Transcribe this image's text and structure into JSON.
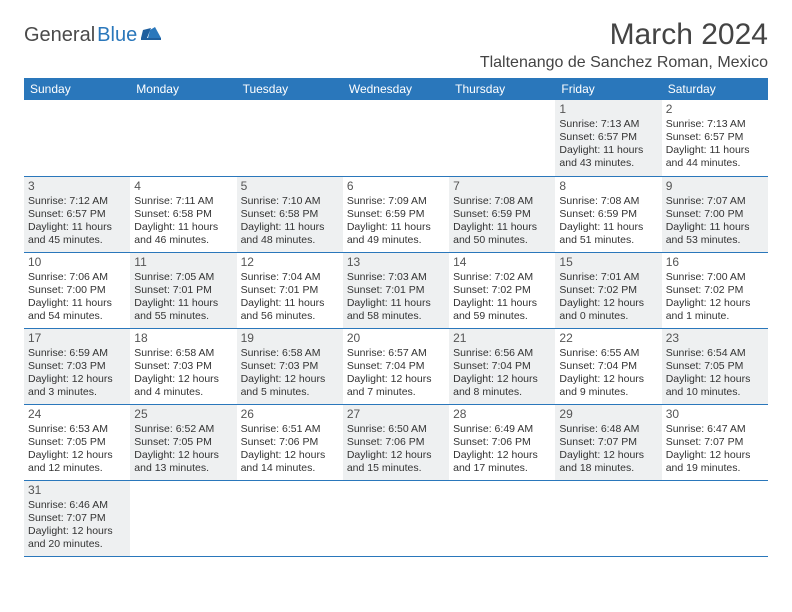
{
  "logo": {
    "text_dark": "General",
    "text_blue": "Blue"
  },
  "title": "March 2024",
  "location": "Tlaltenango de Sanchez Roman, Mexico",
  "colors": {
    "header_bg": "#2a77bb",
    "header_text": "#ffffff",
    "border": "#2a77bb",
    "shaded_bg": "#eef0f1",
    "text": "#333333",
    "logo_dark": "#4a4a4a",
    "logo_blue": "#2a77bb"
  },
  "weekdays": [
    "Sunday",
    "Monday",
    "Tuesday",
    "Wednesday",
    "Thursday",
    "Friday",
    "Saturday"
  ],
  "weeks": [
    [
      null,
      null,
      null,
      null,
      null,
      {
        "n": "1",
        "sunrise": "Sunrise: 7:13 AM",
        "sunset": "Sunset: 6:57 PM",
        "day1": "Daylight: 11 hours",
        "day2": "and 43 minutes.",
        "shaded": true
      },
      {
        "n": "2",
        "sunrise": "Sunrise: 7:13 AM",
        "sunset": "Sunset: 6:57 PM",
        "day1": "Daylight: 11 hours",
        "day2": "and 44 minutes.",
        "shaded": false
      }
    ],
    [
      {
        "n": "3",
        "sunrise": "Sunrise: 7:12 AM",
        "sunset": "Sunset: 6:57 PM",
        "day1": "Daylight: 11 hours",
        "day2": "and 45 minutes.",
        "shaded": true
      },
      {
        "n": "4",
        "sunrise": "Sunrise: 7:11 AM",
        "sunset": "Sunset: 6:58 PM",
        "day1": "Daylight: 11 hours",
        "day2": "and 46 minutes.",
        "shaded": false
      },
      {
        "n": "5",
        "sunrise": "Sunrise: 7:10 AM",
        "sunset": "Sunset: 6:58 PM",
        "day1": "Daylight: 11 hours",
        "day2": "and 48 minutes.",
        "shaded": true
      },
      {
        "n": "6",
        "sunrise": "Sunrise: 7:09 AM",
        "sunset": "Sunset: 6:59 PM",
        "day1": "Daylight: 11 hours",
        "day2": "and 49 minutes.",
        "shaded": false
      },
      {
        "n": "7",
        "sunrise": "Sunrise: 7:08 AM",
        "sunset": "Sunset: 6:59 PM",
        "day1": "Daylight: 11 hours",
        "day2": "and 50 minutes.",
        "shaded": true
      },
      {
        "n": "8",
        "sunrise": "Sunrise: 7:08 AM",
        "sunset": "Sunset: 6:59 PM",
        "day1": "Daylight: 11 hours",
        "day2": "and 51 minutes.",
        "shaded": false
      },
      {
        "n": "9",
        "sunrise": "Sunrise: 7:07 AM",
        "sunset": "Sunset: 7:00 PM",
        "day1": "Daylight: 11 hours",
        "day2": "and 53 minutes.",
        "shaded": true
      }
    ],
    [
      {
        "n": "10",
        "sunrise": "Sunrise: 7:06 AM",
        "sunset": "Sunset: 7:00 PM",
        "day1": "Daylight: 11 hours",
        "day2": "and 54 minutes.",
        "shaded": false
      },
      {
        "n": "11",
        "sunrise": "Sunrise: 7:05 AM",
        "sunset": "Sunset: 7:01 PM",
        "day1": "Daylight: 11 hours",
        "day2": "and 55 minutes.",
        "shaded": true
      },
      {
        "n": "12",
        "sunrise": "Sunrise: 7:04 AM",
        "sunset": "Sunset: 7:01 PM",
        "day1": "Daylight: 11 hours",
        "day2": "and 56 minutes.",
        "shaded": false
      },
      {
        "n": "13",
        "sunrise": "Sunrise: 7:03 AM",
        "sunset": "Sunset: 7:01 PM",
        "day1": "Daylight: 11 hours",
        "day2": "and 58 minutes.",
        "shaded": true
      },
      {
        "n": "14",
        "sunrise": "Sunrise: 7:02 AM",
        "sunset": "Sunset: 7:02 PM",
        "day1": "Daylight: 11 hours",
        "day2": "and 59 minutes.",
        "shaded": false
      },
      {
        "n": "15",
        "sunrise": "Sunrise: 7:01 AM",
        "sunset": "Sunset: 7:02 PM",
        "day1": "Daylight: 12 hours",
        "day2": "and 0 minutes.",
        "shaded": true
      },
      {
        "n": "16",
        "sunrise": "Sunrise: 7:00 AM",
        "sunset": "Sunset: 7:02 PM",
        "day1": "Daylight: 12 hours",
        "day2": "and 1 minute.",
        "shaded": false
      }
    ],
    [
      {
        "n": "17",
        "sunrise": "Sunrise: 6:59 AM",
        "sunset": "Sunset: 7:03 PM",
        "day1": "Daylight: 12 hours",
        "day2": "and 3 minutes.",
        "shaded": true
      },
      {
        "n": "18",
        "sunrise": "Sunrise: 6:58 AM",
        "sunset": "Sunset: 7:03 PM",
        "day1": "Daylight: 12 hours",
        "day2": "and 4 minutes.",
        "shaded": false
      },
      {
        "n": "19",
        "sunrise": "Sunrise: 6:58 AM",
        "sunset": "Sunset: 7:03 PM",
        "day1": "Daylight: 12 hours",
        "day2": "and 5 minutes.",
        "shaded": true
      },
      {
        "n": "20",
        "sunrise": "Sunrise: 6:57 AM",
        "sunset": "Sunset: 7:04 PM",
        "day1": "Daylight: 12 hours",
        "day2": "and 7 minutes.",
        "shaded": false
      },
      {
        "n": "21",
        "sunrise": "Sunrise: 6:56 AM",
        "sunset": "Sunset: 7:04 PM",
        "day1": "Daylight: 12 hours",
        "day2": "and 8 minutes.",
        "shaded": true
      },
      {
        "n": "22",
        "sunrise": "Sunrise: 6:55 AM",
        "sunset": "Sunset: 7:04 PM",
        "day1": "Daylight: 12 hours",
        "day2": "and 9 minutes.",
        "shaded": false
      },
      {
        "n": "23",
        "sunrise": "Sunrise: 6:54 AM",
        "sunset": "Sunset: 7:05 PM",
        "day1": "Daylight: 12 hours",
        "day2": "and 10 minutes.",
        "shaded": true
      }
    ],
    [
      {
        "n": "24",
        "sunrise": "Sunrise: 6:53 AM",
        "sunset": "Sunset: 7:05 PM",
        "day1": "Daylight: 12 hours",
        "day2": "and 12 minutes.",
        "shaded": false
      },
      {
        "n": "25",
        "sunrise": "Sunrise: 6:52 AM",
        "sunset": "Sunset: 7:05 PM",
        "day1": "Daylight: 12 hours",
        "day2": "and 13 minutes.",
        "shaded": true
      },
      {
        "n": "26",
        "sunrise": "Sunrise: 6:51 AM",
        "sunset": "Sunset: 7:06 PM",
        "day1": "Daylight: 12 hours",
        "day2": "and 14 minutes.",
        "shaded": false
      },
      {
        "n": "27",
        "sunrise": "Sunrise: 6:50 AM",
        "sunset": "Sunset: 7:06 PM",
        "day1": "Daylight: 12 hours",
        "day2": "and 15 minutes.",
        "shaded": true
      },
      {
        "n": "28",
        "sunrise": "Sunrise: 6:49 AM",
        "sunset": "Sunset: 7:06 PM",
        "day1": "Daylight: 12 hours",
        "day2": "and 17 minutes.",
        "shaded": false
      },
      {
        "n": "29",
        "sunrise": "Sunrise: 6:48 AM",
        "sunset": "Sunset: 7:07 PM",
        "day1": "Daylight: 12 hours",
        "day2": "and 18 minutes.",
        "shaded": true
      },
      {
        "n": "30",
        "sunrise": "Sunrise: 6:47 AM",
        "sunset": "Sunset: 7:07 PM",
        "day1": "Daylight: 12 hours",
        "day2": "and 19 minutes.",
        "shaded": false
      }
    ],
    [
      {
        "n": "31",
        "sunrise": "Sunrise: 6:46 AM",
        "sunset": "Sunset: 7:07 PM",
        "day1": "Daylight: 12 hours",
        "day2": "and 20 minutes.",
        "shaded": true
      },
      null,
      null,
      null,
      null,
      null,
      null
    ]
  ]
}
